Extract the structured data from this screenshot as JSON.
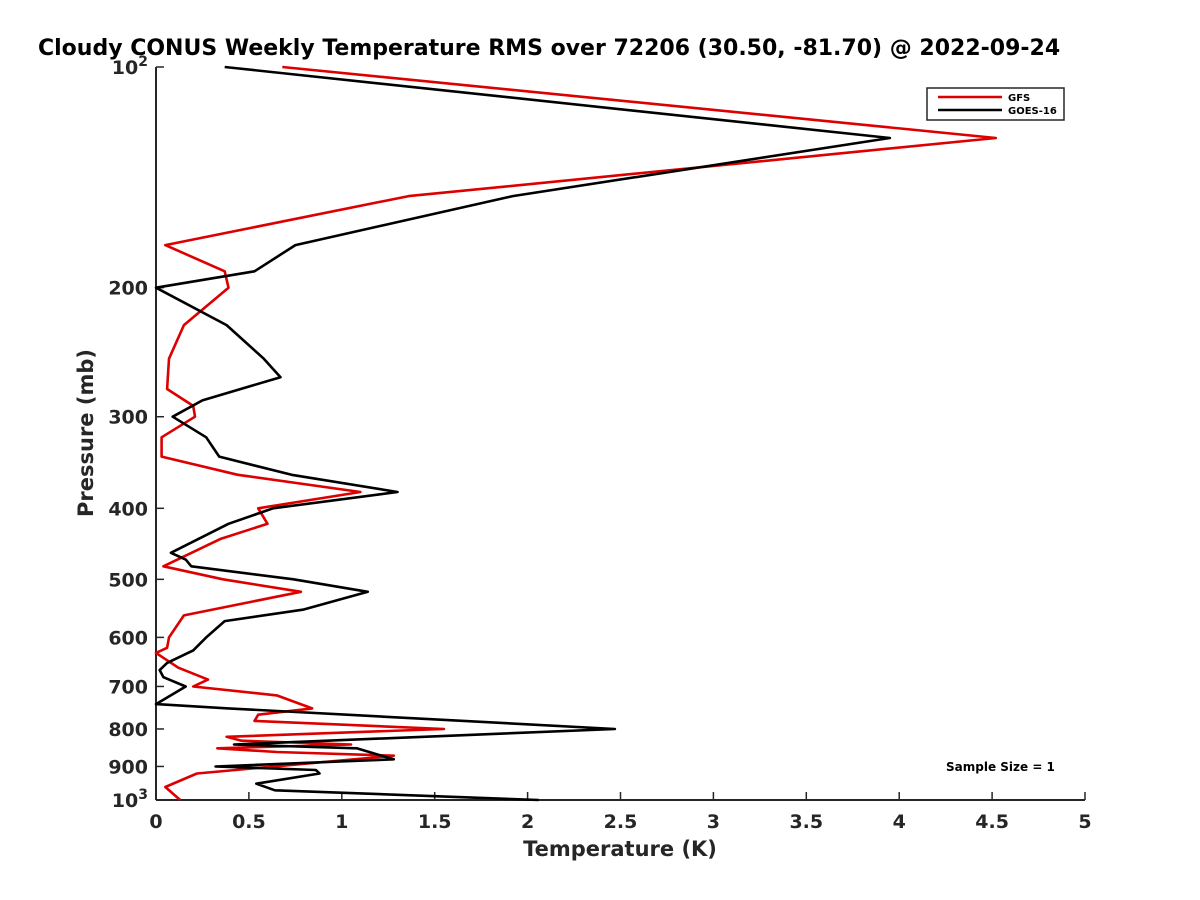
{
  "chart_data": {
    "type": "line",
    "title": "Cloudy CONUS Weekly Temperature RMS over 72206 (30.50, -81.70) @ 2022-09-24",
    "xlabel": "Temperature (K)",
    "ylabel": "Pressure (mb)",
    "xlim": [
      0,
      5
    ],
    "ylim": [
      100,
      1000
    ],
    "yscale": "log",
    "y_reversed": true,
    "x_ticks": [
      0,
      0.5,
      1,
      1.5,
      2,
      2.5,
      3,
      3.5,
      4,
      4.5,
      5
    ],
    "x_tick_labels": [
      "0",
      "0.5",
      "1",
      "1.5",
      "2",
      "2.5",
      "3",
      "3.5",
      "4",
      "4.5",
      "5"
    ],
    "y_ticks": [
      {
        "value": 100,
        "base": "10",
        "exp": "2"
      },
      {
        "value": 200,
        "label": "200"
      },
      {
        "value": 300,
        "label": "300"
      },
      {
        "value": 400,
        "label": "400"
      },
      {
        "value": 500,
        "label": "500"
      },
      {
        "value": 600,
        "label": "600"
      },
      {
        "value": 700,
        "label": "700"
      },
      {
        "value": 800,
        "label": "800"
      },
      {
        "value": 900,
        "label": "900"
      },
      {
        "value": 1000,
        "base": "10",
        "exp": "3"
      }
    ],
    "legend_position": "top-right",
    "annotation": "Sample Size = 1",
    "series": [
      {
        "name": "GFS",
        "color": "#dd0000",
        "points": [
          [
            0.68,
            100
          ],
          [
            4.52,
            125
          ],
          [
            1.36,
            150
          ],
          [
            0.05,
            175
          ],
          [
            0.37,
            190
          ],
          [
            0.39,
            200
          ],
          [
            0.15,
            225
          ],
          [
            0.07,
            250
          ],
          [
            0.06,
            275
          ],
          [
            0.2,
            290
          ],
          [
            0.21,
            300
          ],
          [
            0.03,
            320
          ],
          [
            0.03,
            340
          ],
          [
            0.44,
            360
          ],
          [
            1.1,
            380
          ],
          [
            0.55,
            400
          ],
          [
            0.6,
            420
          ],
          [
            0.35,
            440
          ],
          [
            0.04,
            480
          ],
          [
            0.36,
            500
          ],
          [
            0.78,
            520
          ],
          [
            0.15,
            560
          ],
          [
            0.07,
            600
          ],
          [
            0.06,
            620
          ],
          [
            0.0,
            630
          ],
          [
            0.12,
            660
          ],
          [
            0.28,
            685
          ],
          [
            0.2,
            700
          ],
          [
            0.65,
            720
          ],
          [
            0.84,
            750
          ],
          [
            0.55,
            765
          ],
          [
            0.53,
            780
          ],
          [
            1.55,
            800
          ],
          [
            0.38,
            820
          ],
          [
            0.46,
            830
          ],
          [
            1.05,
            840
          ],
          [
            0.33,
            850
          ],
          [
            0.65,
            860
          ],
          [
            1.28,
            870
          ],
          [
            0.22,
            920
          ],
          [
            0.05,
            960
          ],
          [
            0.13,
            1000
          ]
        ]
      },
      {
        "name": "GOES-16",
        "color": "#000000",
        "points": [
          [
            0.37,
            100
          ],
          [
            3.95,
            125
          ],
          [
            1.92,
            150
          ],
          [
            0.75,
            175
          ],
          [
            0.53,
            190
          ],
          [
            0.0,
            200
          ],
          [
            0.38,
            225
          ],
          [
            0.58,
            250
          ],
          [
            0.67,
            265
          ],
          [
            0.25,
            285
          ],
          [
            0.09,
            300
          ],
          [
            0.27,
            320
          ],
          [
            0.34,
            340
          ],
          [
            0.73,
            360
          ],
          [
            1.3,
            380
          ],
          [
            0.63,
            400
          ],
          [
            0.39,
            420
          ],
          [
            0.08,
            460
          ],
          [
            0.16,
            470
          ],
          [
            0.19,
            480
          ],
          [
            0.74,
            500
          ],
          [
            1.14,
            520
          ],
          [
            0.79,
            550
          ],
          [
            0.37,
            570
          ],
          [
            0.27,
            600
          ],
          [
            0.2,
            625
          ],
          [
            0.06,
            650
          ],
          [
            0.02,
            665
          ],
          [
            0.04,
            680
          ],
          [
            0.16,
            700
          ],
          [
            0.04,
            730
          ],
          [
            0.0,
            740
          ],
          [
            0.39,
            750
          ],
          [
            2.47,
            800
          ],
          [
            0.42,
            840
          ],
          [
            1.08,
            850
          ],
          [
            1.28,
            880
          ],
          [
            0.32,
            900
          ],
          [
            0.86,
            910
          ],
          [
            0.88,
            920
          ],
          [
            0.54,
            950
          ],
          [
            0.64,
            970
          ],
          [
            2.06,
            1000
          ]
        ]
      }
    ]
  }
}
